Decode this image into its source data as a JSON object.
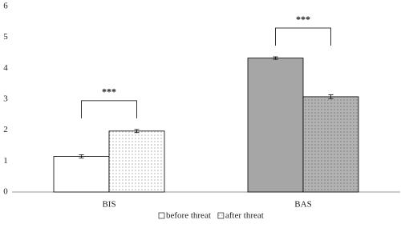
{
  "chart_data": {
    "type": "bar",
    "categories": [
      "BIS",
      "BAS"
    ],
    "series": [
      {
        "name": "before threat",
        "colors": [
          "#ffffff",
          "#a6a6a6"
        ],
        "pattern": "none",
        "values": [
          1.15,
          4.33
        ],
        "errors": [
          0.05,
          0.04
        ]
      },
      {
        "name": "after threat",
        "colors": [
          "#ffffff",
          "#b3b3b3"
        ],
        "pattern": "dots",
        "values": [
          1.97,
          3.08
        ],
        "errors": [
          0.05,
          0.06
        ]
      }
    ],
    "annotations": [
      "***",
      "***"
    ],
    "ylim": [
      0,
      6
    ],
    "yticks": [
      0,
      1,
      2,
      3,
      4,
      5,
      6
    ],
    "grid": false,
    "legend": "bottom"
  }
}
